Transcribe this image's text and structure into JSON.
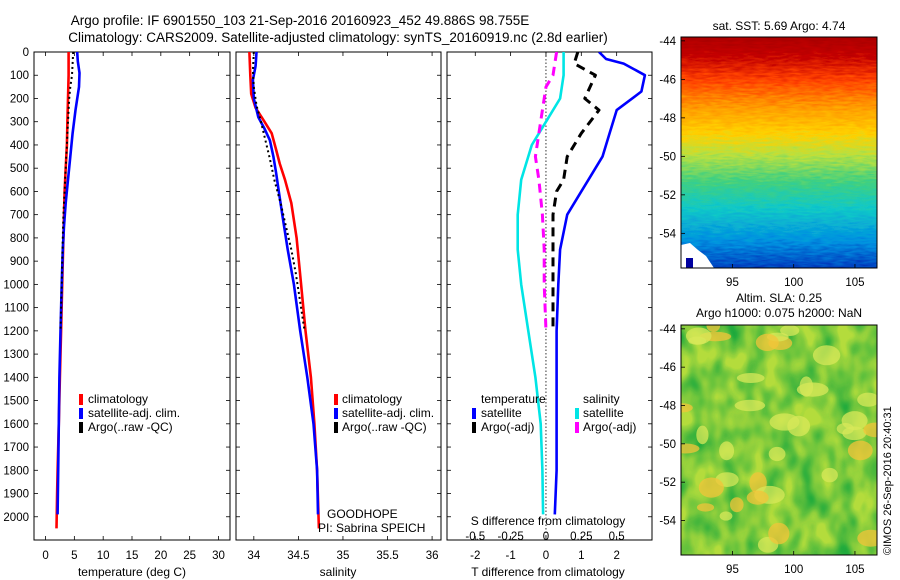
{
  "header": {
    "line1": "Argo profile: IF 6901550_103 21-Sep-2016 20160923_452 49.886S 98.755E",
    "line2": "Climatology: CARS2009. Satellite-adjusted climatology: synTS_20160919.nc (2.8d earlier)"
  },
  "chart_data": [
    {
      "type": "line",
      "id": "temperature-panel",
      "xlabel": "temperature (deg C)",
      "ylabel": "",
      "xlim": [
        -2,
        32
      ],
      "ylim": [
        0,
        2100
      ],
      "xticks": [
        0,
        5,
        10,
        15,
        20,
        25,
        30
      ],
      "yticks": [
        0,
        100,
        200,
        300,
        400,
        500,
        600,
        700,
        800,
        900,
        1000,
        1100,
        1200,
        1300,
        1400,
        1500,
        1600,
        1700,
        1800,
        1900,
        2000
      ],
      "legend": [
        "climatology",
        "satellite-adj. clim.",
        "Argo(..raw -QC)"
      ],
      "series": [
        {
          "name": "climatology",
          "color": "#ff0000",
          "points": [
            [
              4.0,
              0
            ],
            [
              4.0,
              100
            ],
            [
              3.9,
              200
            ],
            [
              3.8,
              300
            ],
            [
              3.7,
              400
            ],
            [
              3.5,
              500
            ],
            [
              3.3,
              600
            ],
            [
              3.1,
              800
            ],
            [
              2.9,
              1000
            ],
            [
              2.7,
              1200
            ],
            [
              2.5,
              1400
            ],
            [
              2.3,
              1600
            ],
            [
              2.1,
              1800
            ],
            [
              2.0,
              1900
            ],
            [
              1.9,
              2050
            ]
          ]
        },
        {
          "name": "satellite-adj. clim.",
          "color": "#0000ff",
          "points": [
            [
              5.5,
              0
            ],
            [
              5.6,
              40
            ],
            [
              5.9,
              90
            ],
            [
              5.8,
              150
            ],
            [
              5.2,
              250
            ],
            [
              4.7,
              350
            ],
            [
              4.3,
              450
            ],
            [
              3.9,
              550
            ],
            [
              3.5,
              650
            ],
            [
              3.2,
              750
            ],
            [
              3.0,
              850
            ],
            [
              2.8,
              1000
            ],
            [
              2.6,
              1200
            ],
            [
              2.4,
              1400
            ],
            [
              2.3,
              1600
            ],
            [
              2.2,
              1800
            ],
            [
              2.1,
              1990
            ]
          ]
        },
        {
          "name": "Argo(..raw -QC)",
          "color": "#000000",
          "points": [
            [
              4.8,
              0
            ],
            [
              4.7,
              50
            ],
            [
              4.6,
              100
            ],
            [
              4.3,
              150
            ],
            [
              4.1,
              200
            ],
            [
              3.9,
              300
            ],
            [
              3.7,
              400
            ],
            [
              3.5,
              500
            ],
            [
              3.3,
              600
            ],
            [
              3.1,
              700
            ],
            [
              3.0,
              800
            ],
            [
              2.9,
              900
            ],
            [
              2.8,
              1000
            ],
            [
              2.7,
              1100
            ],
            [
              2.6,
              1200
            ]
          ]
        }
      ]
    },
    {
      "type": "line",
      "id": "salinity-panel",
      "xlabel": "salinity",
      "ylabel": "",
      "xlim": [
        33.8,
        36.1
      ],
      "ylim": [
        0,
        2100
      ],
      "xticks": [
        34,
        34.5,
        35,
        35.5,
        36
      ],
      "xticklabels": [
        "34",
        "34.5",
        "35",
        "35.5",
        "36"
      ],
      "legend": [
        "climatology",
        "satellite-adj. clim.",
        "Argo(..raw -QC)"
      ],
      "annotations": [
        "GOODHOPE",
        "PI: Sabrina SPEICH"
      ],
      "series": [
        {
          "name": "climatology",
          "color": "#ff0000",
          "points": [
            [
              33.95,
              0
            ],
            [
              33.96,
              100
            ],
            [
              33.97,
              180
            ],
            [
              34.02,
              240
            ],
            [
              34.12,
              300
            ],
            [
              34.2,
              350
            ],
            [
              34.25,
              420
            ],
            [
              34.29,
              480
            ],
            [
              34.35,
              550
            ],
            [
              34.42,
              650
            ],
            [
              34.48,
              800
            ],
            [
              34.53,
              1000
            ],
            [
              34.58,
              1200
            ],
            [
              34.64,
              1400
            ],
            [
              34.68,
              1600
            ],
            [
              34.71,
              1800
            ],
            [
              34.73,
              2050
            ]
          ]
        },
        {
          "name": "satellite-adj. clim.",
          "color": "#0000ff",
          "points": [
            [
              34.03,
              0
            ],
            [
              34.02,
              60
            ],
            [
              33.99,
              120
            ],
            [
              34.0,
              200
            ],
            [
              34.05,
              280
            ],
            [
              34.12,
              330
            ],
            [
              34.18,
              380
            ],
            [
              34.22,
              450
            ],
            [
              34.25,
              520
            ],
            [
              34.28,
              600
            ],
            [
              34.32,
              700
            ],
            [
              34.38,
              850
            ],
            [
              34.45,
              1000
            ],
            [
              34.52,
              1200
            ],
            [
              34.6,
              1400
            ],
            [
              34.67,
              1600
            ],
            [
              34.71,
              1800
            ],
            [
              34.72,
              1990
            ]
          ]
        },
        {
          "name": "Argo(..raw -QC)",
          "color": "#000000",
          "points": [
            [
              34.0,
              0
            ],
            [
              33.99,
              80
            ],
            [
              34.0,
              150
            ],
            [
              34.03,
              230
            ],
            [
              34.08,
              300
            ],
            [
              34.13,
              380
            ],
            [
              34.18,
              460
            ],
            [
              34.23,
              550
            ],
            [
              34.3,
              650
            ],
            [
              34.36,
              750
            ],
            [
              34.42,
              850
            ],
            [
              34.47,
              950
            ],
            [
              34.51,
              1050
            ],
            [
              34.55,
              1150
            ],
            [
              34.57,
              1200
            ]
          ]
        }
      ]
    },
    {
      "type": "line",
      "id": "difference-panel",
      "xlabel": "T difference from climatology",
      "xlabel_top": "S difference from climatology",
      "xlim": [
        -2.8,
        3.0
      ],
      "ylim": [
        0,
        2100
      ],
      "xticks": [
        -2,
        -1,
        0,
        1,
        2
      ],
      "s_ticklabels": [
        "-0.5",
        "-0.25",
        "0",
        "0.25",
        "0.5"
      ],
      "legend": {
        "temperature_title": "temperature",
        "salinity_title": "salinity",
        "satellite": "satellite",
        "argo": "Argo(-adj)"
      },
      "series": [
        {
          "name": "T satellite",
          "color": "#0000ff",
          "points": [
            [
              1.5,
              0
            ],
            [
              1.7,
              30
            ],
            [
              2.2,
              50
            ],
            [
              2.8,
              100
            ],
            [
              2.7,
              170
            ],
            [
              2.0,
              250
            ],
            [
              1.8,
              350
            ],
            [
              1.6,
              450
            ],
            [
              1.2,
              550
            ],
            [
              1.0,
              600
            ],
            [
              0.6,
              700
            ],
            [
              0.4,
              850
            ],
            [
              0.35,
              1000
            ],
            [
              0.3,
              1200
            ],
            [
              0.3,
              1500
            ],
            [
              0.3,
              1800
            ],
            [
              0.25,
              1990
            ]
          ]
        },
        {
          "name": "T Argo(-adj)",
          "color": "#000000",
          "points": [
            [
              0.9,
              0
            ],
            [
              0.8,
              50
            ],
            [
              1.4,
              100
            ],
            [
              1.1,
              200
            ],
            [
              1.5,
              250
            ],
            [
              1.0,
              350
            ],
            [
              0.6,
              450
            ],
            [
              0.5,
              550
            ],
            [
              0.3,
              600
            ],
            [
              0.2,
              700
            ],
            [
              0.2,
              800
            ],
            [
              0.2,
              1000
            ],
            [
              0.2,
              1200
            ]
          ]
        },
        {
          "name": "S satellite",
          "color": "#00e5e5",
          "points": [
            [
              0.5,
              0
            ],
            [
              0.5,
              100
            ],
            [
              0.4,
              200
            ],
            [
              0.0,
              300
            ],
            [
              -0.4,
              400
            ],
            [
              -0.7,
              550
            ],
            [
              -0.8,
              700
            ],
            [
              -0.8,
              850
            ],
            [
              -0.7,
              1000
            ],
            [
              -0.5,
              1200
            ],
            [
              -0.3,
              1400
            ],
            [
              -0.15,
              1600
            ],
            [
              -0.1,
              1800
            ],
            [
              -0.08,
              1990
            ]
          ]
        },
        {
          "name": "S Argo(-adj)",
          "color": "#ff00ff",
          "points": [
            [
              0.3,
              0
            ],
            [
              0.2,
              100
            ],
            [
              0.0,
              150
            ],
            [
              -0.1,
              250
            ],
            [
              -0.2,
              350
            ],
            [
              -0.3,
              450
            ],
            [
              -0.2,
              550
            ],
            [
              -0.1,
              700
            ],
            [
              -0.05,
              850
            ],
            [
              -0.05,
              1000
            ],
            [
              0.0,
              1200
            ]
          ]
        }
      ]
    },
    {
      "type": "heatmap",
      "id": "sst-map",
      "title": "sat. SST: 5.69  Argo: 4.74",
      "xticks": [
        95,
        100,
        105
      ],
      "yticks": [
        -44,
        -46,
        -48,
        -50,
        -52,
        -54
      ],
      "xlim": [
        90.8,
        106.8
      ],
      "ylim": [
        -55.8,
        -43.8
      ],
      "colormap": "jet"
    },
    {
      "type": "heatmap",
      "id": "sla-map",
      "title_line1": "Altim. SLA: 0.25",
      "title_line2": "Argo h1000: 0.075 h2000: NaN",
      "xticks": [
        95,
        100,
        105
      ],
      "yticks": [
        -44,
        -46,
        -48,
        -50,
        -52,
        -54
      ],
      "xlim": [
        90.8,
        106.8
      ],
      "ylim": [
        -55.8,
        -43.8
      ],
      "colormap": "green-yellow"
    }
  ],
  "timestamp": "©IMOS 26-Sep-2016 20:40:31"
}
